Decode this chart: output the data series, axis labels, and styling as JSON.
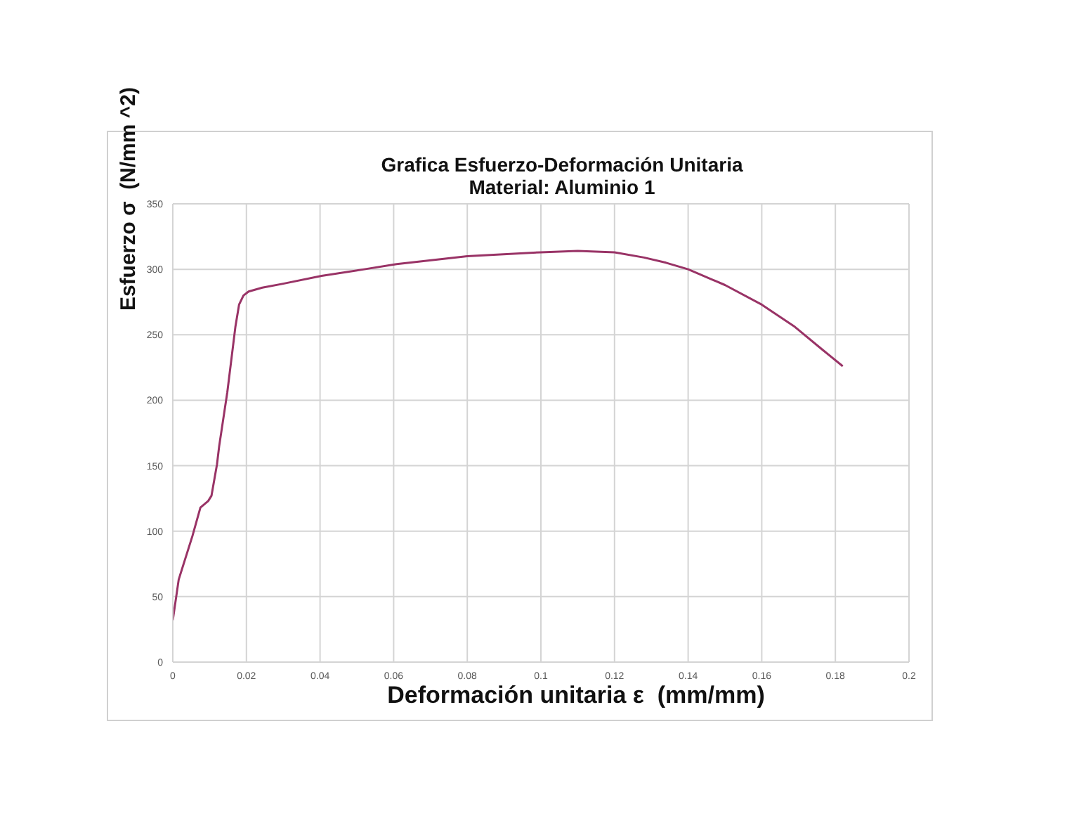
{
  "chart_data": {
    "type": "line",
    "title": "Grafica Esfuerzo-Deformación Unitaria",
    "subtitle": "Material: Aluminio 1",
    "xlabel": "Deformación unitaria ε  (mm/mm)",
    "ylabel": "Esfuerzo σ  (N/mm ^2)",
    "x": [
      0,
      0.0016,
      0.0053,
      0.0075,
      0.0096,
      0.0105,
      0.012,
      0.0126,
      0.0148,
      0.017,
      0.018,
      0.0192,
      0.0206,
      0.0243,
      0.03,
      0.0404,
      0.052,
      0.0608,
      0.08,
      0.1,
      0.11,
      0.12,
      0.128,
      0.134,
      0.14,
      0.15,
      0.16,
      0.169,
      0.1763,
      0.182
    ],
    "series": [
      {
        "color": "#993366",
        "values": [
          32,
          63,
          96,
          118,
          123,
          127,
          151,
          165,
          206,
          256,
          273,
          280,
          283,
          286,
          289,
          295,
          300,
          304,
          310,
          313,
          314,
          313,
          309,
          305,
          300,
          288,
          273,
          256,
          239,
          226
        ]
      }
    ],
    "xlim": [
      0,
      0.2
    ],
    "xticks": [
      0,
      0.02,
      0.04,
      0.06,
      0.08,
      0.1,
      0.12,
      0.14,
      0.16,
      0.18,
      0.2
    ],
    "ylim": [
      0,
      350
    ],
    "yticks": [
      0,
      50,
      100,
      150,
      200,
      250,
      300,
      350
    ],
    "grid": true,
    "marker": "none"
  }
}
